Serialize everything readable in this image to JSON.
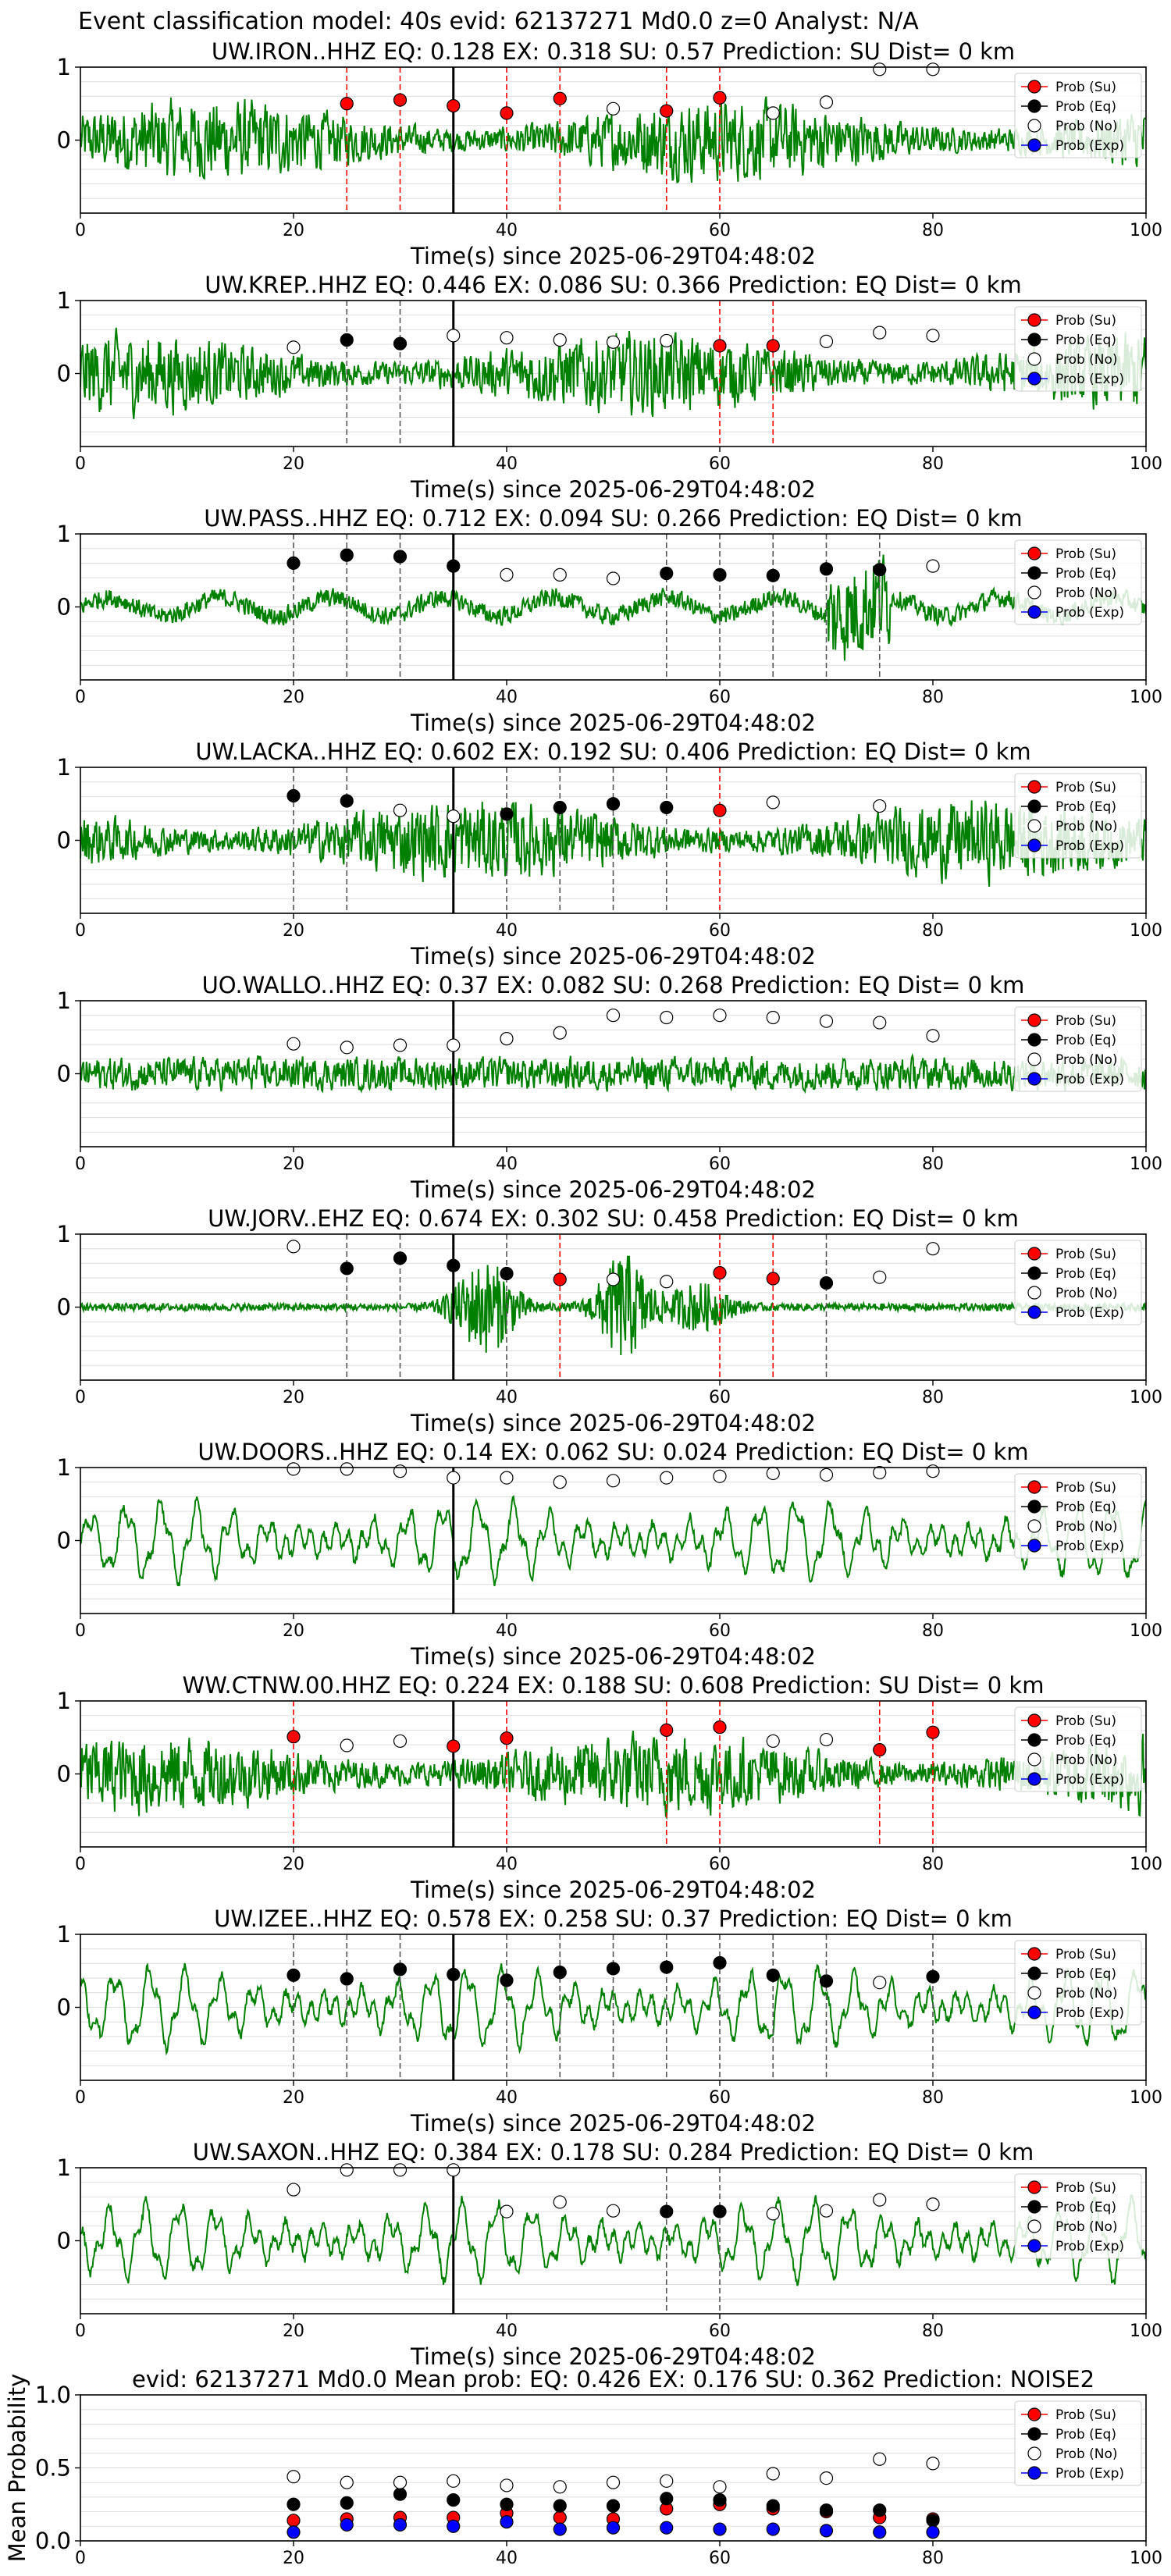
{
  "figure": {
    "suptitle": "Event classification model: 40s evid: 62137271 Md0.0 z=0 Analyst: N/A",
    "xlabel": "Time(s) since 2025-06-29T04:48:02",
    "legend": [
      "Prob (Su)",
      "Prob (Eq)",
      "Prob (No)",
      "Prob (Exp)"
    ],
    "colors": {
      "su": "#ff0000",
      "eq": "#000000",
      "no": "#ffffff",
      "exp": "#0000ff",
      "trace": "#008000",
      "grid": "#dddddd",
      "su_line": "#ff0000",
      "eq_line": "#555555"
    }
  },
  "chart_data": [
    {
      "type": "line",
      "title": "UW.IRON..HHZ   EQ: 0.128  EX: 0.318  SU: 0.57    Prediction: SU    Dist= 0 km",
      "xlim": [
        0,
        100
      ],
      "ylim": [
        -1,
        1
      ],
      "xticks": [
        0,
        20,
        40,
        60,
        80,
        100
      ],
      "yticks": [
        "1",
        "0"
      ],
      "pick": 35,
      "amp": "high",
      "points": [
        {
          "x": 25,
          "y": 0.5,
          "c": "su"
        },
        {
          "x": 30,
          "y": 0.55,
          "c": "su"
        },
        {
          "x": 35,
          "y": 0.47,
          "c": "su"
        },
        {
          "x": 40,
          "y": 0.37,
          "c": "su"
        },
        {
          "x": 45,
          "y": 0.57,
          "c": "su"
        },
        {
          "x": 50,
          "y": 0.43,
          "c": "no"
        },
        {
          "x": 55,
          "y": 0.4,
          "c": "su"
        },
        {
          "x": 60,
          "y": 0.58,
          "c": "su"
        },
        {
          "x": 65,
          "y": 0.37,
          "c": "no"
        },
        {
          "x": 70,
          "y": 0.52,
          "c": "no"
        },
        {
          "x": 75,
          "y": 0.97,
          "c": "no"
        },
        {
          "x": 80,
          "y": 0.97,
          "c": "no"
        }
      ]
    },
    {
      "type": "line",
      "title": "UW.KREP..HHZ   EQ: 0.446  EX: 0.086  SU: 0.366   Prediction: EQ    Dist= 0 km",
      "xlim": [
        0,
        100
      ],
      "ylim": [
        -1,
        1
      ],
      "xticks": [
        0,
        20,
        40,
        60,
        80,
        100
      ],
      "yticks": [
        "1",
        "0"
      ],
      "pick": 35,
      "amp": "high",
      "points": [
        {
          "x": 20,
          "y": 0.36,
          "c": "no"
        },
        {
          "x": 25,
          "y": 0.46,
          "c": "eq"
        },
        {
          "x": 30,
          "y": 0.41,
          "c": "eq"
        },
        {
          "x": 35,
          "y": 0.52,
          "c": "no"
        },
        {
          "x": 40,
          "y": 0.49,
          "c": "no"
        },
        {
          "x": 45,
          "y": 0.46,
          "c": "no"
        },
        {
          "x": 50,
          "y": 0.43,
          "c": "no"
        },
        {
          "x": 55,
          "y": 0.45,
          "c": "no"
        },
        {
          "x": 60,
          "y": 0.38,
          "c": "su"
        },
        {
          "x": 65,
          "y": 0.38,
          "c": "su"
        },
        {
          "x": 70,
          "y": 0.44,
          "c": "no"
        },
        {
          "x": 75,
          "y": 0.56,
          "c": "no"
        },
        {
          "x": 80,
          "y": 0.52,
          "c": "no"
        }
      ]
    },
    {
      "type": "line",
      "title": "UW.PASS..HHZ   EQ: 0.712  EX: 0.094  SU: 0.266   Prediction: EQ    Dist= 0 km",
      "xlim": [
        0,
        100
      ],
      "ylim": [
        -1,
        1
      ],
      "xticks": [
        0,
        20,
        40,
        60,
        80,
        100
      ],
      "yticks": [
        "1",
        "0"
      ],
      "pick": 35,
      "amp": "low",
      "points": [
        {
          "x": 20,
          "y": 0.6,
          "c": "eq"
        },
        {
          "x": 25,
          "y": 0.71,
          "c": "eq"
        },
        {
          "x": 30,
          "y": 0.69,
          "c": "eq"
        },
        {
          "x": 35,
          "y": 0.56,
          "c": "eq"
        },
        {
          "x": 40,
          "y": 0.44,
          "c": "no"
        },
        {
          "x": 45,
          "y": 0.44,
          "c": "no"
        },
        {
          "x": 50,
          "y": 0.39,
          "c": "no"
        },
        {
          "x": 55,
          "y": 0.46,
          "c": "eq"
        },
        {
          "x": 60,
          "y": 0.44,
          "c": "eq"
        },
        {
          "x": 65,
          "y": 0.43,
          "c": "eq"
        },
        {
          "x": 70,
          "y": 0.52,
          "c": "eq"
        },
        {
          "x": 75,
          "y": 0.51,
          "c": "eq"
        },
        {
          "x": 80,
          "y": 0.56,
          "c": "no"
        }
      ]
    },
    {
      "type": "line",
      "title": "UW.LACKA..HHZ   EQ: 0.602  EX: 0.192  SU: 0.406   Prediction: EQ    Dist= 0 km",
      "xlim": [
        0,
        100
      ],
      "ylim": [
        -1,
        1
      ],
      "xticks": [
        0,
        20,
        40,
        60,
        80,
        100
      ],
      "yticks": [
        "1",
        "0"
      ],
      "pick": 35,
      "amp": "high",
      "points": [
        {
          "x": 20,
          "y": 0.61,
          "c": "eq"
        },
        {
          "x": 25,
          "y": 0.54,
          "c": "eq"
        },
        {
          "x": 30,
          "y": 0.41,
          "c": "no"
        },
        {
          "x": 35,
          "y": 0.33,
          "c": "no"
        },
        {
          "x": 40,
          "y": 0.36,
          "c": "eq"
        },
        {
          "x": 45,
          "y": 0.45,
          "c": "eq"
        },
        {
          "x": 50,
          "y": 0.5,
          "c": "eq"
        },
        {
          "x": 55,
          "y": 0.45,
          "c": "eq"
        },
        {
          "x": 60,
          "y": 0.41,
          "c": "su"
        },
        {
          "x": 65,
          "y": 0.52,
          "c": "no"
        },
        {
          "x": 75,
          "y": 0.47,
          "c": "no"
        }
      ]
    },
    {
      "type": "line",
      "title": "UO.WALLO..HHZ   EQ: 0.37  EX: 0.082  SU: 0.268   Prediction: EQ    Dist= 0 km",
      "xlim": [
        0,
        100
      ],
      "ylim": [
        -1,
        1
      ],
      "xticks": [
        0,
        20,
        40,
        60,
        80,
        100
      ],
      "yticks": [
        "1",
        "0"
      ],
      "pick": 35,
      "amp": "mid",
      "points": [
        {
          "x": 20,
          "y": 0.41,
          "c": "no"
        },
        {
          "x": 25,
          "y": 0.36,
          "c": "no"
        },
        {
          "x": 30,
          "y": 0.39,
          "c": "no"
        },
        {
          "x": 35,
          "y": 0.39,
          "c": "no"
        },
        {
          "x": 40,
          "y": 0.48,
          "c": "no"
        },
        {
          "x": 45,
          "y": 0.56,
          "c": "no"
        },
        {
          "x": 50,
          "y": 0.8,
          "c": "no"
        },
        {
          "x": 55,
          "y": 0.77,
          "c": "no"
        },
        {
          "x": 60,
          "y": 0.8,
          "c": "no"
        },
        {
          "x": 65,
          "y": 0.77,
          "c": "no"
        },
        {
          "x": 70,
          "y": 0.72,
          "c": "no"
        },
        {
          "x": 75,
          "y": 0.7,
          "c": "no"
        },
        {
          "x": 80,
          "y": 0.52,
          "c": "no"
        }
      ]
    },
    {
      "type": "line",
      "title": "UW.JORV..EHZ   EQ: 0.674  EX: 0.302  SU: 0.458   Prediction: EQ    Dist= 0 km",
      "xlim": [
        0,
        100
      ],
      "ylim": [
        -1,
        1
      ],
      "xticks": [
        0,
        20,
        40,
        60,
        80,
        100
      ],
      "yticks": [
        "1",
        "0"
      ],
      "pick": 35,
      "amp": "burst",
      "points": [
        {
          "x": 20,
          "y": 0.83,
          "c": "no"
        },
        {
          "x": 25,
          "y": 0.53,
          "c": "eq"
        },
        {
          "x": 30,
          "y": 0.67,
          "c": "eq"
        },
        {
          "x": 35,
          "y": 0.57,
          "c": "eq"
        },
        {
          "x": 40,
          "y": 0.46,
          "c": "eq"
        },
        {
          "x": 45,
          "y": 0.38,
          "c": "su"
        },
        {
          "x": 50,
          "y": 0.38,
          "c": "no"
        },
        {
          "x": 55,
          "y": 0.35,
          "c": "no"
        },
        {
          "x": 60,
          "y": 0.47,
          "c": "su"
        },
        {
          "x": 65,
          "y": 0.39,
          "c": "su"
        },
        {
          "x": 70,
          "y": 0.33,
          "c": "eq"
        },
        {
          "x": 75,
          "y": 0.41,
          "c": "no"
        },
        {
          "x": 80,
          "y": 0.8,
          "c": "no"
        }
      ]
    },
    {
      "type": "line",
      "title": "UW.DOORS..HHZ   EQ: 0.14  EX: 0.062  SU: 0.024   Prediction: EQ    Dist= 0 km",
      "xlim": [
        0,
        100
      ],
      "ylim": [
        -1,
        1
      ],
      "xticks": [
        0,
        20,
        40,
        60,
        80,
        100
      ],
      "yticks": [
        "1",
        "0"
      ],
      "pick": 35,
      "amp": "smooth",
      "points": [
        {
          "x": 20,
          "y": 0.98,
          "c": "no"
        },
        {
          "x": 25,
          "y": 0.98,
          "c": "no"
        },
        {
          "x": 30,
          "y": 0.95,
          "c": "no"
        },
        {
          "x": 35,
          "y": 0.86,
          "c": "no"
        },
        {
          "x": 40,
          "y": 0.86,
          "c": "no"
        },
        {
          "x": 45,
          "y": 0.8,
          "c": "no"
        },
        {
          "x": 50,
          "y": 0.82,
          "c": "no"
        },
        {
          "x": 55,
          "y": 0.86,
          "c": "no"
        },
        {
          "x": 60,
          "y": 0.88,
          "c": "no"
        },
        {
          "x": 65,
          "y": 0.92,
          "c": "no"
        },
        {
          "x": 70,
          "y": 0.9,
          "c": "no"
        },
        {
          "x": 75,
          "y": 0.93,
          "c": "no"
        },
        {
          "x": 80,
          "y": 0.95,
          "c": "no"
        }
      ]
    },
    {
      "type": "line",
      "title": "WW.CTNW.00.HHZ   EQ: 0.224  EX: 0.188  SU: 0.608   Prediction: SU    Dist= 0 km",
      "xlim": [
        0,
        100
      ],
      "ylim": [
        -1,
        1
      ],
      "xticks": [
        0,
        20,
        40,
        60,
        80,
        100
      ],
      "yticks": [
        "1",
        "0"
      ],
      "pick": 35,
      "amp": "high",
      "points": [
        {
          "x": 20,
          "y": 0.51,
          "c": "su"
        },
        {
          "x": 25,
          "y": 0.39,
          "c": "no"
        },
        {
          "x": 30,
          "y": 0.45,
          "c": "no"
        },
        {
          "x": 35,
          "y": 0.38,
          "c": "su"
        },
        {
          "x": 40,
          "y": 0.49,
          "c": "su"
        },
        {
          "x": 55,
          "y": 0.6,
          "c": "su"
        },
        {
          "x": 60,
          "y": 0.64,
          "c": "su"
        },
        {
          "x": 65,
          "y": 0.45,
          "c": "no"
        },
        {
          "x": 70,
          "y": 0.47,
          "c": "no"
        },
        {
          "x": 75,
          "y": 0.33,
          "c": "su"
        },
        {
          "x": 80,
          "y": 0.57,
          "c": "su"
        }
      ]
    },
    {
      "type": "line",
      "title": "UW.IZEE..HHZ   EQ: 0.578  EX: 0.258  SU: 0.37    Prediction: EQ    Dist= 0 km",
      "xlim": [
        0,
        100
      ],
      "ylim": [
        -1,
        1
      ],
      "xticks": [
        0,
        20,
        40,
        60,
        80,
        100
      ],
      "yticks": [
        "1",
        "0"
      ],
      "pick": 35,
      "amp": "smooth",
      "points": [
        {
          "x": 20,
          "y": 0.44,
          "c": "eq"
        },
        {
          "x": 25,
          "y": 0.39,
          "c": "eq"
        },
        {
          "x": 30,
          "y": 0.52,
          "c": "eq"
        },
        {
          "x": 35,
          "y": 0.45,
          "c": "eq"
        },
        {
          "x": 40,
          "y": 0.37,
          "c": "eq"
        },
        {
          "x": 45,
          "y": 0.48,
          "c": "eq"
        },
        {
          "x": 50,
          "y": 0.53,
          "c": "eq"
        },
        {
          "x": 55,
          "y": 0.55,
          "c": "eq"
        },
        {
          "x": 60,
          "y": 0.61,
          "c": "eq"
        },
        {
          "x": 65,
          "y": 0.44,
          "c": "eq"
        },
        {
          "x": 70,
          "y": 0.36,
          "c": "eq"
        },
        {
          "x": 75,
          "y": 0.34,
          "c": "no"
        },
        {
          "x": 80,
          "y": 0.42,
          "c": "eq"
        }
      ]
    },
    {
      "type": "line",
      "title": "UW.SAXON..HHZ   EQ: 0.384  EX: 0.178  SU: 0.284   Prediction: EQ    Dist= 0 km",
      "xlim": [
        0,
        100
      ],
      "ylim": [
        -1,
        1
      ],
      "xticks": [
        0,
        20,
        40,
        60,
        80,
        100
      ],
      "yticks": [
        "1",
        "0"
      ],
      "pick": 35,
      "amp": "smooth",
      "points": [
        {
          "x": 20,
          "y": 0.7,
          "c": "no"
        },
        {
          "x": 25,
          "y": 0.97,
          "c": "no"
        },
        {
          "x": 30,
          "y": 0.97,
          "c": "no"
        },
        {
          "x": 35,
          "y": 0.97,
          "c": "no"
        },
        {
          "x": 40,
          "y": 0.4,
          "c": "no"
        },
        {
          "x": 45,
          "y": 0.53,
          "c": "no"
        },
        {
          "x": 50,
          "y": 0.41,
          "c": "no"
        },
        {
          "x": 55,
          "y": 0.4,
          "c": "eq"
        },
        {
          "x": 60,
          "y": 0.4,
          "c": "eq"
        },
        {
          "x": 65,
          "y": 0.37,
          "c": "no"
        },
        {
          "x": 70,
          "y": 0.41,
          "c": "no"
        },
        {
          "x": 75,
          "y": 0.56,
          "c": "no"
        },
        {
          "x": 80,
          "y": 0.5,
          "c": "no"
        }
      ]
    },
    {
      "type": "scatter",
      "title": "evid: 62137271  Md0.0   Mean prob:   EQ: 0.426  EX: 0.176  SU: 0.362   Prediction: NOISE2",
      "ylabel": "Mean Probability",
      "xlim": [
        0,
        100
      ],
      "ylim": [
        0,
        1
      ],
      "xticks": [
        0,
        20,
        40,
        60,
        80,
        100
      ],
      "yticks": [
        "0.0",
        "0.5",
        "1.0"
      ],
      "x": [
        20,
        25,
        30,
        35,
        40,
        45,
        50,
        55,
        60,
        65,
        70,
        75,
        80
      ],
      "series": [
        {
          "name": "Prob (Su)",
          "color": "su",
          "values": [
            0.14,
            0.15,
            0.16,
            0.16,
            0.19,
            0.16,
            0.15,
            0.22,
            0.25,
            0.22,
            0.2,
            0.16,
            0.15
          ]
        },
        {
          "name": "Prob (Eq)",
          "color": "eq",
          "values": [
            0.25,
            0.26,
            0.32,
            0.28,
            0.25,
            0.24,
            0.24,
            0.29,
            0.28,
            0.24,
            0.21,
            0.21,
            0.14
          ]
        },
        {
          "name": "Prob (No)",
          "color": "no",
          "values": [
            0.44,
            0.4,
            0.4,
            0.41,
            0.38,
            0.37,
            0.4,
            0.41,
            0.37,
            0.46,
            0.43,
            0.56,
            0.53
          ]
        },
        {
          "name": "Prob (Exp)",
          "color": "exp",
          "values": [
            0.06,
            0.11,
            0.11,
            0.1,
            0.13,
            0.08,
            0.09,
            0.09,
            0.08,
            0.08,
            0.07,
            0.06,
            0.06
          ]
        }
      ]
    }
  ]
}
